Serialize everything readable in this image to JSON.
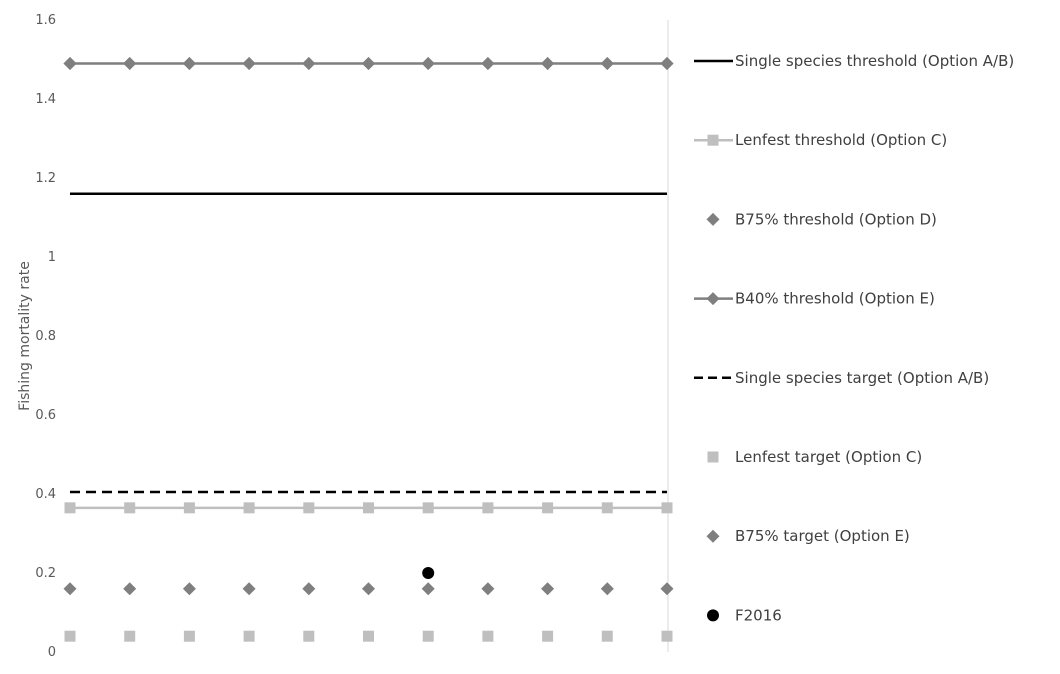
{
  "chart_data": {
    "type": "line",
    "title": "",
    "xlabel": "",
    "ylabel": "Fishing mortality rate",
    "ylim": [
      0,
      1.6
    ],
    "yticks": [
      "0",
      "0.2",
      "0.4",
      "0.6",
      "0.8",
      "1",
      "1.2",
      "1.4",
      "1.6"
    ],
    "x": [
      1,
      2,
      3,
      4,
      5,
      6,
      7,
      8,
      9,
      10,
      11
    ],
    "grid": false,
    "legend_position": "right",
    "series": [
      {
        "name": "Single species threshold (Option A/B)",
        "style": "solid-line",
        "color": "#000000",
        "values": [
          1.16,
          1.16,
          1.16,
          1.16,
          1.16,
          1.16,
          1.16,
          1.16,
          1.16,
          1.16,
          1.16
        ]
      },
      {
        "name": "Lenfest threshold (Option C)",
        "style": "line-square",
        "color": "#bfbfbf",
        "values": [
          0.365,
          0.365,
          0.365,
          0.365,
          0.365,
          0.365,
          0.365,
          0.365,
          0.365,
          0.365,
          0.365
        ]
      },
      {
        "name": "B75% threshold (Option D)",
        "style": "diamond",
        "color": "#7f7f7f",
        "values": [
          1.49,
          1.49,
          1.49,
          1.49,
          1.49,
          1.49,
          1.49,
          1.49,
          1.49,
          1.49,
          1.49
        ]
      },
      {
        "name": "B40% threshold (Option E)",
        "style": "line-diamond",
        "color": "#7f7f7f",
        "values": [
          1.49,
          1.49,
          1.49,
          1.49,
          1.49,
          1.49,
          1.49,
          1.49,
          1.49,
          1.49,
          1.49
        ]
      },
      {
        "name": "Single species target (Option A/B)",
        "style": "dashed-line",
        "color": "#000000",
        "values": [
          0.405,
          0.405,
          0.405,
          0.405,
          0.405,
          0.405,
          0.405,
          0.405,
          0.405,
          0.405,
          0.405
        ]
      },
      {
        "name": "Lenfest target (Option C)",
        "style": "square",
        "color": "#bfbfbf",
        "values": [
          0.04,
          0.04,
          0.04,
          0.04,
          0.04,
          0.04,
          0.04,
          0.04,
          0.04,
          0.04,
          0.04
        ]
      },
      {
        "name": "B75% target (Option E)",
        "style": "diamond",
        "color": "#7f7f7f",
        "values": [
          0.16,
          0.16,
          0.16,
          0.16,
          0.16,
          0.16,
          0.16,
          0.16,
          0.16,
          0.16,
          0.16
        ]
      },
      {
        "name": "F2016",
        "style": "circle",
        "color": "#000000",
        "points": [
          {
            "x": 7,
            "y": 0.2
          }
        ]
      }
    ]
  }
}
